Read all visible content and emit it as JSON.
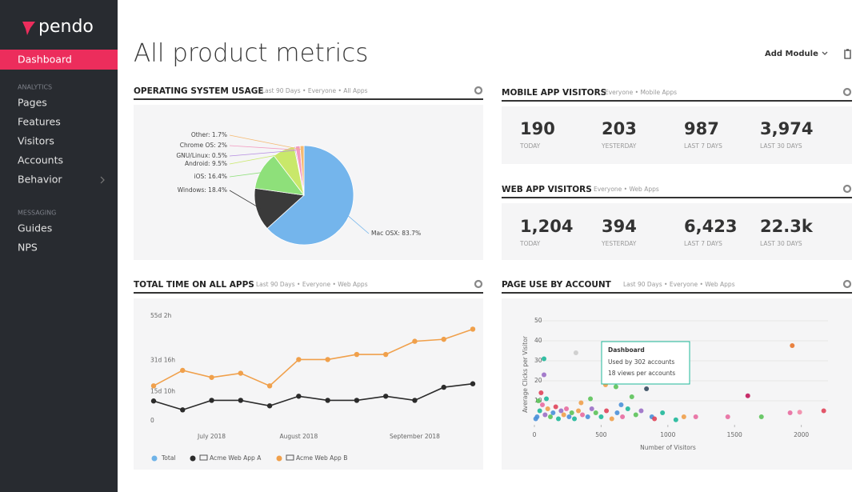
{
  "sidebar": {
    "logo": "pendo",
    "active": "Dashboard",
    "sections": [
      {
        "heading": "ANALYTICS",
        "items": [
          "Pages",
          "Features",
          "Visitors",
          "Accounts",
          "Behavior"
        ]
      },
      {
        "heading": "MESSAGING",
        "items": [
          "Guides",
          "NPS"
        ]
      }
    ]
  },
  "header": {
    "title": "All product metrics",
    "action": "Add Module"
  },
  "os_usage": {
    "title": "OPERATING SYSTEM USAGE",
    "subtitle": "Last 90 Days • Everyone • All Apps",
    "chart_data": {
      "type": "pie",
      "values": [
        83.7,
        18.4,
        16.4,
        9.5,
        0.5,
        2,
        1.7
      ],
      "value_labels": [
        "Mac OSX: 83.7%",
        "Windows: 18.4%",
        "iOS: 16.4%",
        "Android: 9.5%",
        "GNU/Linux: 0.5%",
        "Chrome OS: 2%",
        "Other: 1.7%"
      ],
      "colors": [
        "#74b5ec",
        "#3a3a3a",
        "#8ee07a",
        "#c9e86a",
        "#b58ce0",
        "#f29ac0",
        "#f5b971"
      ]
    }
  },
  "mobile_visitors": {
    "title": "MOBILE APP VISITORS",
    "subtitle": "Everyone • Mobile Apps",
    "stats": [
      {
        "value": "190",
        "label": "TODAY"
      },
      {
        "value": "203",
        "label": "YESTERDAY"
      },
      {
        "value": "987",
        "label": "LAST 7 DAYS"
      },
      {
        "value": "3,974",
        "label": "LAST 30 DAYS"
      }
    ]
  },
  "web_visitors": {
    "title": "WEB APP VISITORS",
    "subtitle": "Everyone • Web Apps",
    "stats": [
      {
        "value": "1,204",
        "label": "TODAY"
      },
      {
        "value": "394",
        "label": "YESTERDAY"
      },
      {
        "value": "6,423",
        "label": "LAST 7 DAYS"
      },
      {
        "value": "22.3k",
        "label": "LAST 30 DAYS"
      }
    ]
  },
  "total_time": {
    "title": "TOTAL TIME ON ALL APPS",
    "subtitle": "Last 90 Days • Everyone • Web Apps",
    "chart_data": {
      "type": "line",
      "categories": [
        null,
        null,
        "July 2018",
        null,
        null,
        "August 2018",
        null,
        null,
        null,
        "September 2018",
        null,
        null
      ],
      "ylim": [
        0,
        1322
      ],
      "yticks": [
        0,
        {
          "value": 370,
          "label": "15d 10h"
        },
        {
          "value": 760,
          "label": "31d 16h"
        },
        {
          "value": 1322,
          "label": "55d 2h"
        }
      ],
      "grid": false,
      "series": [
        {
          "name": "Total",
          "color": "#6fb3e8",
          "values": [
            null,
            null,
            null,
            null,
            null,
            null,
            null,
            null,
            null,
            null,
            null,
            null
          ]
        },
        {
          "name": "Acme Web App A",
          "color": "#2b2b2b",
          "values": [
            250,
            138,
            258,
            258,
            189,
            310,
            258,
            258,
            310,
            258,
            423,
            467
          ]
        },
        {
          "name": "Acme Web App B",
          "color": "#f0a04b",
          "values": [
            441,
            636,
            547,
            600,
            441,
            773,
            773,
            837,
            837,
            1003,
            1028,
            1156
          ]
        }
      ]
    }
  },
  "page_use": {
    "title": "PAGE USE BY ACCOUNT",
    "subtitle": "Last 90 Days • Everyone • Web Apps",
    "tooltip": {
      "title": "Dashboard",
      "lines": [
        "Used by 302 accounts",
        "18 views per accounts"
      ]
    },
    "chart_data": {
      "type": "scatter",
      "x_label": "Number of Visitors",
      "y_label": "Average Clicks per Visitor",
      "xlim": [
        0,
        2200
      ],
      "xticks": [
        0,
        500,
        1000,
        1500,
        2000
      ],
      "ylim": [
        0,
        50
      ],
      "yticks": [
        10,
        20,
        30,
        40,
        50
      ],
      "grid": true,
      "x": [
        1932,
        311,
        72,
        72,
        533,
        611,
        840,
        730,
        1599,
        1701,
        1449,
        1988,
        1916,
        2168,
        1209,
        1120,
        1060,
        20,
        40,
        60,
        80,
        100,
        120,
        140,
        160,
        180,
        200,
        220,
        240,
        260,
        280,
        300,
        330,
        360,
        400,
        430,
        460,
        500,
        540,
        580,
        620,
        660,
        700,
        760,
        800,
        880,
        960,
        30,
        50,
        10,
        90,
        350,
        420,
        650,
        900
      ],
      "values": [
        37.6,
        34,
        31,
        23,
        18,
        17,
        16,
        12,
        12.5,
        2,
        2,
        4.3,
        4,
        5,
        2,
        2,
        0.5,
        2,
        5,
        8,
        3,
        6,
        2,
        4,
        7,
        1,
        5,
        3,
        6,
        2,
        4,
        1,
        5,
        3,
        2,
        6,
        4,
        2,
        5,
        1,
        4,
        2,
        6,
        3,
        5,
        2,
        4,
        10,
        14,
        1,
        11,
        9,
        11,
        8,
        1
      ],
      "colors": [
        "#e8762c",
        "#cccccc",
        "#1fb89a",
        "#9b6fc6",
        "#f0a04b",
        "#5cc35a",
        "#34495e",
        "#5cc35a",
        "#c2185b",
        "#5cc35a",
        "#e86ca0",
        "#f28aa8",
        "#e86ca0",
        "#e0445a",
        "#e86ca0",
        "#f0a04b",
        "#1fb89a",
        "#4a90d9",
        "#1fb89a",
        "#e86ca0",
        "#9b6fc6",
        "#f0a04b",
        "#5cc35a",
        "#4a90d9",
        "#e0445a",
        "#1fb89a",
        "#9b6fc6",
        "#f0a04b",
        "#e86ca0",
        "#4a90d9",
        "#5cc35a",
        "#1fb89a",
        "#f0a04b",
        "#e86ca0",
        "#4a90d9",
        "#9b6fc6",
        "#5cc35a",
        "#1fb89a",
        "#e0445a",
        "#f0a04b",
        "#4a90d9",
        "#e86ca0",
        "#1fb89a",
        "#5cc35a",
        "#9b6fc6",
        "#4a90d9",
        "#1fb89a",
        "#5cc35a",
        "#e0445a",
        "#4a90d9",
        "#1fb89a",
        "#f0a04b",
        "#5cc35a",
        "#4a90d9",
        "#e0445a"
      ]
    }
  }
}
